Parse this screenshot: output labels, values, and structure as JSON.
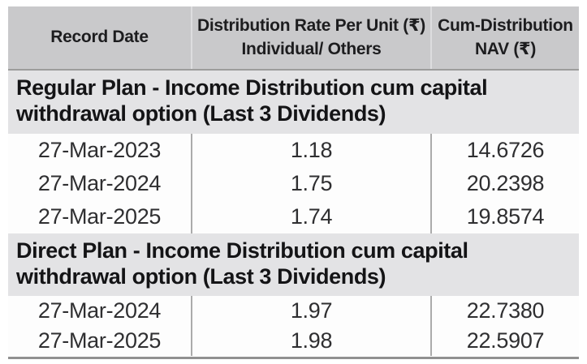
{
  "table": {
    "header": {
      "record_date": "Record Date",
      "rate_line1": "Distribution Rate Per Unit (₹)",
      "rate_line2": "Individual/ Others",
      "nav_line1": "Cum-Distribution",
      "nav_line2": "NAV (₹)"
    },
    "sections": [
      {
        "title": "Regular Plan - Income Distribution cum capital withdrawal option (Last 3 Dividends)",
        "rows": [
          {
            "record_date": "27-Mar-2023",
            "rate": "1.18",
            "nav": "14.6726"
          },
          {
            "record_date": "27-Mar-2024",
            "rate": "1.75",
            "nav": "20.2398"
          },
          {
            "record_date": "27-Mar-2025",
            "rate": "1.74",
            "nav": "19.8574"
          }
        ]
      },
      {
        "title": "Direct Plan - Income Distribution cum capital withdrawal option (Last 3 Dividends)",
        "rows": [
          {
            "record_date": "27-Mar-2024",
            "rate": "1.97",
            "nav": "22.7380"
          },
          {
            "record_date": "27-Mar-2025",
            "rate": "1.98",
            "nav": "22.5907"
          }
        ]
      }
    ],
    "colors": {
      "header_bg": "#c9c9cb",
      "section_bg": "#e3e3e5",
      "row_bg": "#fdfdfd",
      "column_divider": "#ababab",
      "header_divider": "#dddddf",
      "bottom_rule": "#919191",
      "text": "#1d1d1f"
    },
    "chart_data": {
      "type": "table",
      "columns": [
        "Record Date",
        "Distribution Rate Per Unit (₹) Individual/ Others",
        "Cum-Distribution NAV (₹)"
      ],
      "groups": [
        {
          "group": "Regular Plan - Income Distribution cum capital withdrawal option (Last 3 Dividends)",
          "rows": [
            [
              "27-Mar-2023",
              1.18,
              14.6726
            ],
            [
              "27-Mar-2024",
              1.75,
              20.2398
            ],
            [
              "27-Mar-2025",
              1.74,
              19.8574
            ]
          ]
        },
        {
          "group": "Direct Plan - Income Distribution cum capital withdrawal option (Last 3 Dividends)",
          "rows": [
            [
              "27-Mar-2024",
              1.97,
              22.738
            ],
            [
              "27-Mar-2025",
              1.98,
              22.5907
            ]
          ]
        }
      ]
    }
  }
}
